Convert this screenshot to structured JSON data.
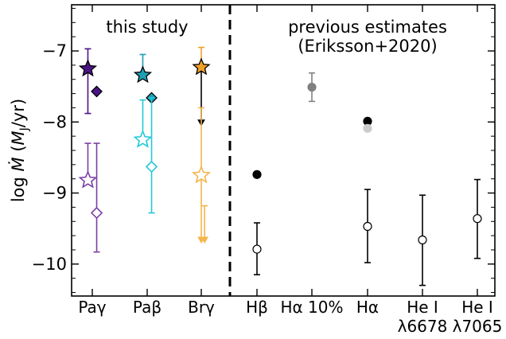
{
  "chart_data": {
    "type": "scatter",
    "title": "",
    "ylabel": "log Ṁ (M_J/yr)",
    "ylim": [
      -10.45,
      -6.35
    ],
    "yticks": [
      -10,
      -9,
      -8,
      -7
    ],
    "ytick_labels": [
      "−10",
      "−9",
      "−8",
      "−7"
    ],
    "categories": [
      "Paγ",
      "Paβ",
      "Brγ",
      "Hβ",
      "Hα 10%",
      "Hα",
      "He I λ6678",
      "He I λ7065"
    ],
    "divider_after_category": "Brγ",
    "annotations": {
      "left": "this study",
      "right_line1": "previous estimates",
      "right_line2": "(Eriksson+2020)"
    },
    "series": [
      {
        "name": "",
        "color": "#4a1486",
        "points": [
          {
            "category": "Paγ",
            "x_offset": -0.08,
            "marker": "star-filled",
            "y": -7.25,
            "err_low": 0.63,
            "err_high": 0.28
          },
          {
            "category": "Paγ",
            "x_offset": 0.08,
            "marker": "diamond-filled",
            "y": -7.57,
            "err_low": 0.0,
            "err_high": 0.0
          }
        ]
      },
      {
        "name": "",
        "color": "#7b3fa5",
        "points": [
          {
            "category": "Paγ",
            "x_offset": -0.08,
            "marker": "star-open",
            "y": -8.82,
            "err_low": 0.0,
            "err_high": 0.52
          },
          {
            "category": "Paγ",
            "x_offset": 0.08,
            "marker": "diamond-open",
            "y": -9.28,
            "err_low": 0.55,
            "err_high": 0.98
          }
        ]
      },
      {
        "name": "",
        "color": "#1e9eb4",
        "points": [
          {
            "category": "Paβ",
            "x_offset": -0.08,
            "marker": "star-filled",
            "y": -7.34,
            "err_low": 0.0,
            "err_high": 0.29
          },
          {
            "category": "Paβ",
            "x_offset": 0.08,
            "marker": "diamond-filled",
            "y": -7.66,
            "err_low": 0.0,
            "err_high": 0.0
          }
        ]
      },
      {
        "name": "",
        "color": "#22c9d8",
        "points": [
          {
            "category": "Paβ",
            "x_offset": -0.08,
            "marker": "star-open",
            "y": -8.25,
            "err_low": 0.0,
            "err_high": 0.56
          },
          {
            "category": "Paβ",
            "x_offset": 0.08,
            "marker": "diamond-open",
            "y": -8.63,
            "err_low": 0.65,
            "err_high": 0.97
          }
        ]
      },
      {
        "name": "",
        "color": "#f0a028",
        "points": [
          {
            "category": "Brγ",
            "x_offset": 0.0,
            "marker": "star-filled",
            "y": -7.23,
            "err_low": 0.0,
            "err_high": 0.28,
            "upper_limit_to": -8.05,
            "upper_limit_color": "#000000"
          }
        ]
      },
      {
        "name": "",
        "color": "#f5b54a",
        "points": [
          {
            "category": "Brγ",
            "x_offset": 0.0,
            "marker": "star-open",
            "y": -8.75,
            "err_low": 0.0,
            "err_high": 0.95,
            "upper_limit_to": -9.7
          },
          {
            "category": "Brγ",
            "x_offset": 0.06,
            "marker": "none",
            "y": -9.18,
            "err_low": 0.0,
            "err_high": 0.0,
            "upper_limit_to": -9.7
          }
        ]
      },
      {
        "name": "",
        "color": "#000000",
        "points": [
          {
            "category": "Hβ",
            "x_offset": 0.0,
            "marker": "circle-filled",
            "y": -8.74,
            "err_low": 0.0,
            "err_high": 0.0
          },
          {
            "category": "Hβ",
            "x_offset": 0.0,
            "marker": "circle-open",
            "y": -9.79,
            "err_low": 0.36,
            "err_high": 0.37
          },
          {
            "category": "Hα",
            "x_offset": 0.0,
            "marker": "circle-filled",
            "y": -7.99,
            "err_low": 0.0,
            "err_high": 0.0
          },
          {
            "category": "Hα",
            "x_offset": 0.0,
            "marker": "circle-open",
            "y": -9.47,
            "err_low": 0.51,
            "err_high": 0.52
          },
          {
            "category": "He I λ6678",
            "x_offset": 0.0,
            "marker": "circle-open",
            "y": -9.66,
            "err_low": 0.64,
            "err_high": 0.63
          },
          {
            "category": "He I λ7065",
            "x_offset": 0.0,
            "marker": "circle-open",
            "y": -9.36,
            "err_low": 0.56,
            "err_high": 0.55
          }
        ]
      },
      {
        "name": "",
        "color": "#808080",
        "points": [
          {
            "category": "Hα 10%",
            "x_offset": 0.0,
            "marker": "circle-filled",
            "y": -7.51,
            "err_low": 0.2,
            "err_high": 0.2
          }
        ]
      },
      {
        "name": "",
        "color": "#cccccc",
        "points": [
          {
            "category": "Hα",
            "x_offset": 0.0,
            "marker": "circle-filled",
            "y": -8.09,
            "err_low": 0.0,
            "err_high": 0.0
          }
        ]
      }
    ]
  }
}
